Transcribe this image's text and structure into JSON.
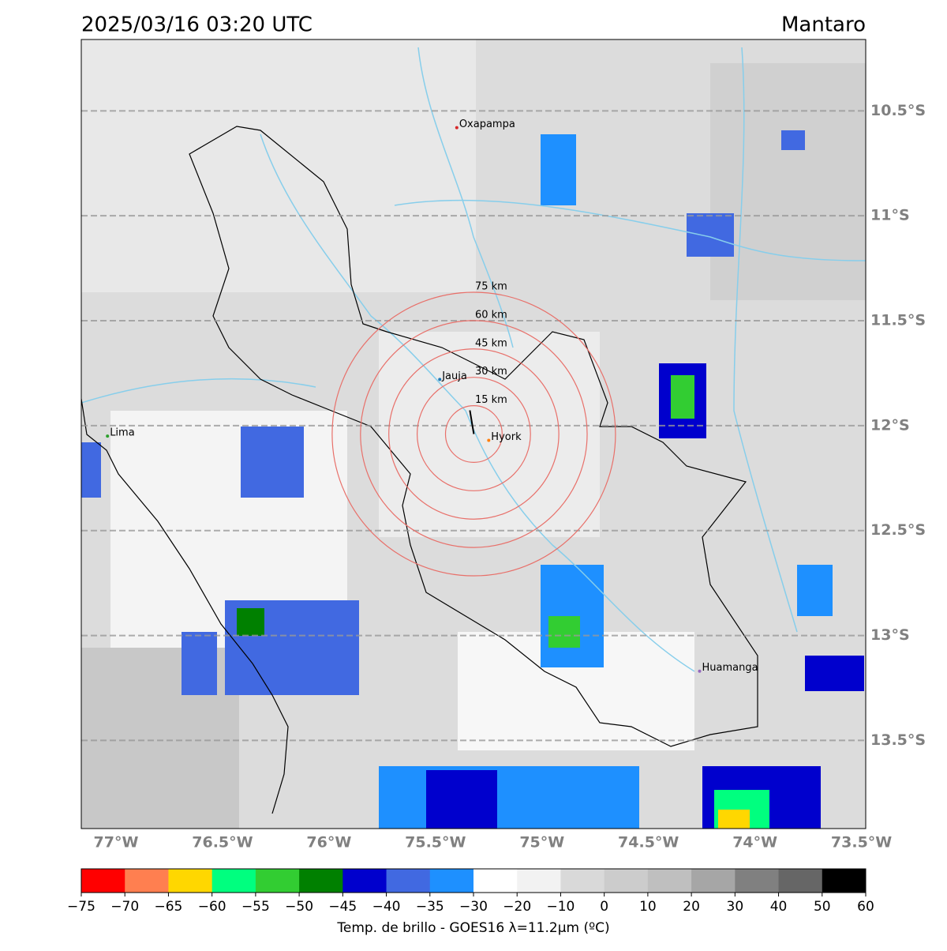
{
  "header": {
    "title": "2025/03/16 03:20 UTC",
    "region": "Mantaro"
  },
  "map": {
    "xlim": [
      -77.163,
      -73.48
    ],
    "ylim": [
      -13.92,
      -10.16
    ],
    "xticks": [
      {
        "value": -77,
        "label": "77°W"
      },
      {
        "value": -76.5,
        "label": "76.5°W"
      },
      {
        "value": -76,
        "label": "76°W"
      },
      {
        "value": -75.5,
        "label": "75.5°W"
      },
      {
        "value": -75,
        "label": "75°W"
      },
      {
        "value": -74.5,
        "label": "74.5°W"
      },
      {
        "value": -74,
        "label": "74°W"
      },
      {
        "value": -73.5,
        "label": "73.5°W"
      }
    ],
    "yticks": [
      {
        "value": -10.5,
        "label": "10.5°S"
      },
      {
        "value": -11,
        "label": "11°S"
      },
      {
        "value": -11.5,
        "label": "11.5°S"
      },
      {
        "value": -12,
        "label": "12°S"
      },
      {
        "value": -12.5,
        "label": "12.5°S"
      },
      {
        "value": -13,
        "label": "13°S"
      },
      {
        "value": -13.5,
        "label": "13.5°S"
      }
    ],
    "places": [
      {
        "name": "Oxapampa",
        "lon": -75.4,
        "lat": -10.58,
        "color": "#d62728"
      },
      {
        "name": "Jauja",
        "lon": -75.48,
        "lat": -11.78,
        "color": "#1f77b4"
      },
      {
        "name": "Lima",
        "lon": -77.04,
        "lat": -12.05,
        "color": "#2ca02c"
      },
      {
        "name": "Hyork",
        "lon": -75.25,
        "lat": -12.07,
        "color": "#ff7f0e"
      },
      {
        "name": "Huamanga",
        "lon": -74.26,
        "lat": -13.17,
        "color": "#9467bd"
      }
    ],
    "rings": {
      "center_lon": -75.32,
      "center_lat": -12.04,
      "color": "#e8706a",
      "radii": [
        {
          "value": 15,
          "label": "15 km"
        },
        {
          "value": 30,
          "label": "30 km"
        },
        {
          "value": 45,
          "label": "45 km"
        },
        {
          "value": 60,
          "label": "60 km"
        },
        {
          "value": 75,
          "label": "75 km"
        }
      ]
    }
  },
  "colorbar": {
    "ticks": [
      {
        "value": -75,
        "label": "−75"
      },
      {
        "value": -70,
        "label": "−70"
      },
      {
        "value": -65,
        "label": "−65"
      },
      {
        "value": -60,
        "label": "−60"
      },
      {
        "value": -55,
        "label": "−55"
      },
      {
        "value": -50,
        "label": "−50"
      },
      {
        "value": -45,
        "label": "−45"
      },
      {
        "value": -40,
        "label": "−40"
      },
      {
        "value": -35,
        "label": "−35"
      },
      {
        "value": -30,
        "label": "−30"
      },
      {
        "value": -20,
        "label": "−20"
      },
      {
        "value": -10,
        "label": "−10"
      },
      0,
      10,
      20,
      30,
      40,
      50,
      60
    ],
    "colors": [
      "#ff0000",
      "#ff7f50",
      "#ffd700",
      "#00ff7f",
      "#32cd32",
      "#008000",
      "#0000cd",
      "#4169e1",
      "#1e90ff",
      "#ffffff",
      "#f2f2f2",
      "#d9d9d9",
      "#cccccc",
      "#bfbfbf",
      "#a6a6a6",
      "#808080",
      "#666666",
      "#000000"
    ],
    "label": "Temp. de brillo - GOES16 λ=11.2μm (ºC)"
  }
}
